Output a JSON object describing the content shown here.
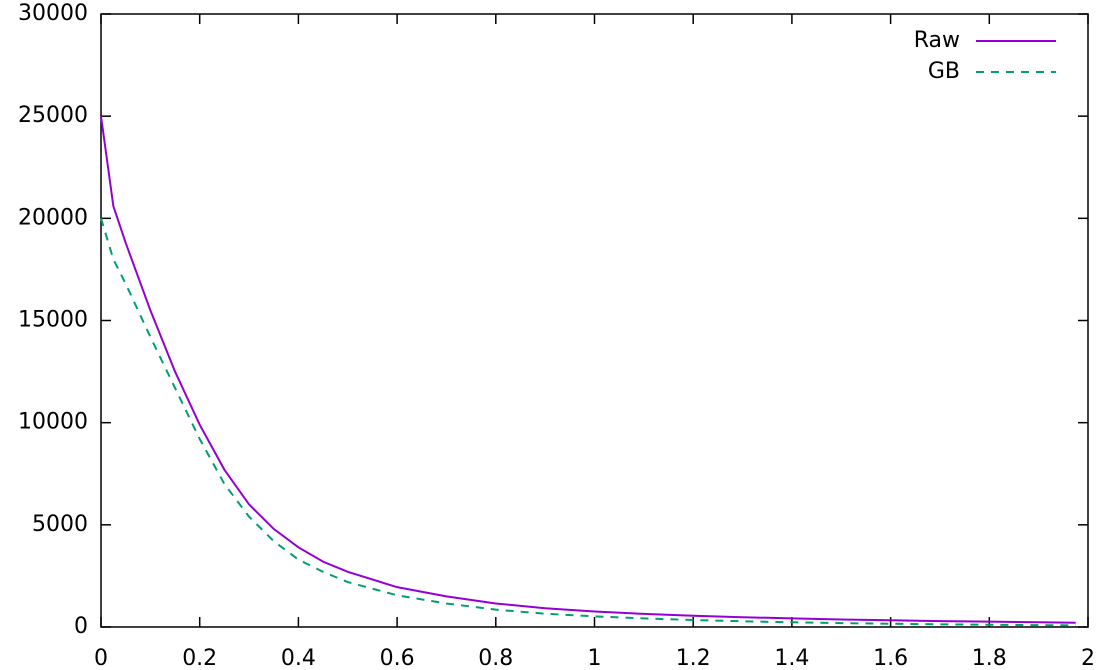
{
  "chart_data": {
    "type": "line",
    "x": [
      0,
      0.025,
      0.05,
      0.1,
      0.15,
      0.2,
      0.25,
      0.3,
      0.35,
      0.4,
      0.45,
      0.5,
      0.6,
      0.7,
      0.8,
      0.9,
      1.0,
      1.1,
      1.2,
      1.3,
      1.4,
      1.5,
      1.6,
      1.7,
      1.8,
      1.9,
      1.975
    ],
    "series": [
      {
        "name": "Raw",
        "color": "#9400d3",
        "dash": false,
        "values": [
          25000,
          20600,
          18800,
          15500,
          12500,
          9900,
          7700,
          6000,
          4800,
          3900,
          3200,
          2700,
          1950,
          1500,
          1150,
          920,
          760,
          640,
          550,
          480,
          420,
          370,
          330,
          290,
          260,
          230,
          210
        ]
      },
      {
        "name": "GB",
        "color": "#009e73",
        "dash": true,
        "values": [
          20000,
          18000,
          16800,
          14200,
          11700,
          9200,
          7000,
          5400,
          4200,
          3300,
          2700,
          2200,
          1550,
          1150,
          850,
          650,
          520,
          420,
          340,
          280,
          230,
          190,
          160,
          130,
          110,
          90,
          80
        ]
      }
    ],
    "xlim": [
      0,
      2
    ],
    "xticks": [
      0,
      0.2,
      0.4,
      0.6,
      0.8,
      1,
      1.2,
      1.4,
      1.6,
      1.8,
      2
    ],
    "ylim": [
      0,
      30000
    ],
    "yticks": [
      0,
      5000,
      10000,
      15000,
      20000,
      25000,
      30000
    ],
    "grid": false,
    "legend": "top-right"
  }
}
